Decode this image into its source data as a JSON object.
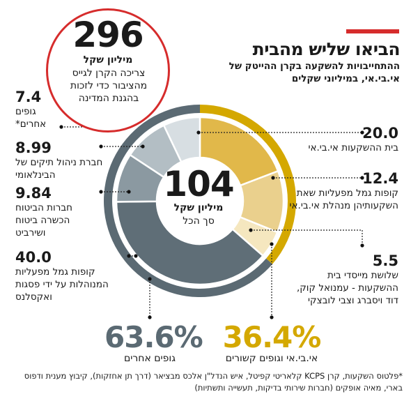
{
  "header": {
    "title": "הביאו שליש מהבית",
    "subtitle": "ההתחייבויות להשקעה בקרן ההייטק של אי.בי.אי, במיליוני שקלים"
  },
  "callout": {
    "value": "296",
    "unit": "מיליון שקל",
    "description": "צריכה הקרן לגייס מהציבור כדי לזכות בהגנת המדינה"
  },
  "center": {
    "value": "104",
    "unit": "מיליון שקל",
    "label": "סך הכל"
  },
  "groups": {
    "ibi": {
      "pct": "36.4%",
      "label": "אי.בי.אי וגופים קשורים",
      "color": "#d4a800"
    },
    "others": {
      "pct": "63.6%",
      "label": "גופים אחרים",
      "color": "#5b6a73"
    }
  },
  "chart_data": {
    "type": "pie",
    "variant": "donut",
    "total": 104,
    "slices": [
      {
        "value": 20.0,
        "value_label": "20.0",
        "label": "בית ההשקעות אי.בי.אי",
        "group": "ibi",
        "color": "#e1b84a"
      },
      {
        "value": 12.4,
        "value_label": "12.4",
        "label": "קופות גמל מפעליות שאת השקעותיהן מנהלת אי.בי.אי",
        "group": "ibi",
        "color": "#ead08d"
      },
      {
        "value": 5.5,
        "value_label": "5.5",
        "label": "שלושת מייסדי בית ההשקעות - עמנואל קוק, דוד ויסברג וצבי לובצקי",
        "group": "ibi",
        "color": "#f5e7bf"
      },
      {
        "value": 40.0,
        "value_label": "40.0",
        "label": "קופות גמל מפעליות המנוהלות על ידי פסגות ואקסלנס",
        "group": "others",
        "color": "#5f6e77"
      },
      {
        "value": 9.84,
        "value_label": "9.84",
        "label": "חברות הביטוח הכשרה ביטוח ושירביט",
        "group": "others",
        "color": "#8b99a1"
      },
      {
        "value": 8.99,
        "value_label": "8.99",
        "label": "חברת ניהול תיקים של הבינלאומי",
        "group": "others",
        "color": "#b3bec4"
      },
      {
        "value": 7.4,
        "value_label": "7.4",
        "label": "גופים אחרים*",
        "group": "others",
        "color": "#d7dee2"
      }
    ]
  },
  "footnote": "*פלטוס השקעות, קרן KCPS קלאריטי קפיטל, איש הנדל\"ן אלכס מבציאר (דרך תן אחזקות), קיבוץ מענית ודפוס בארי, מאיה אופקים (חברות שירותי בדיקות, תעשייה ותשתיות)"
}
